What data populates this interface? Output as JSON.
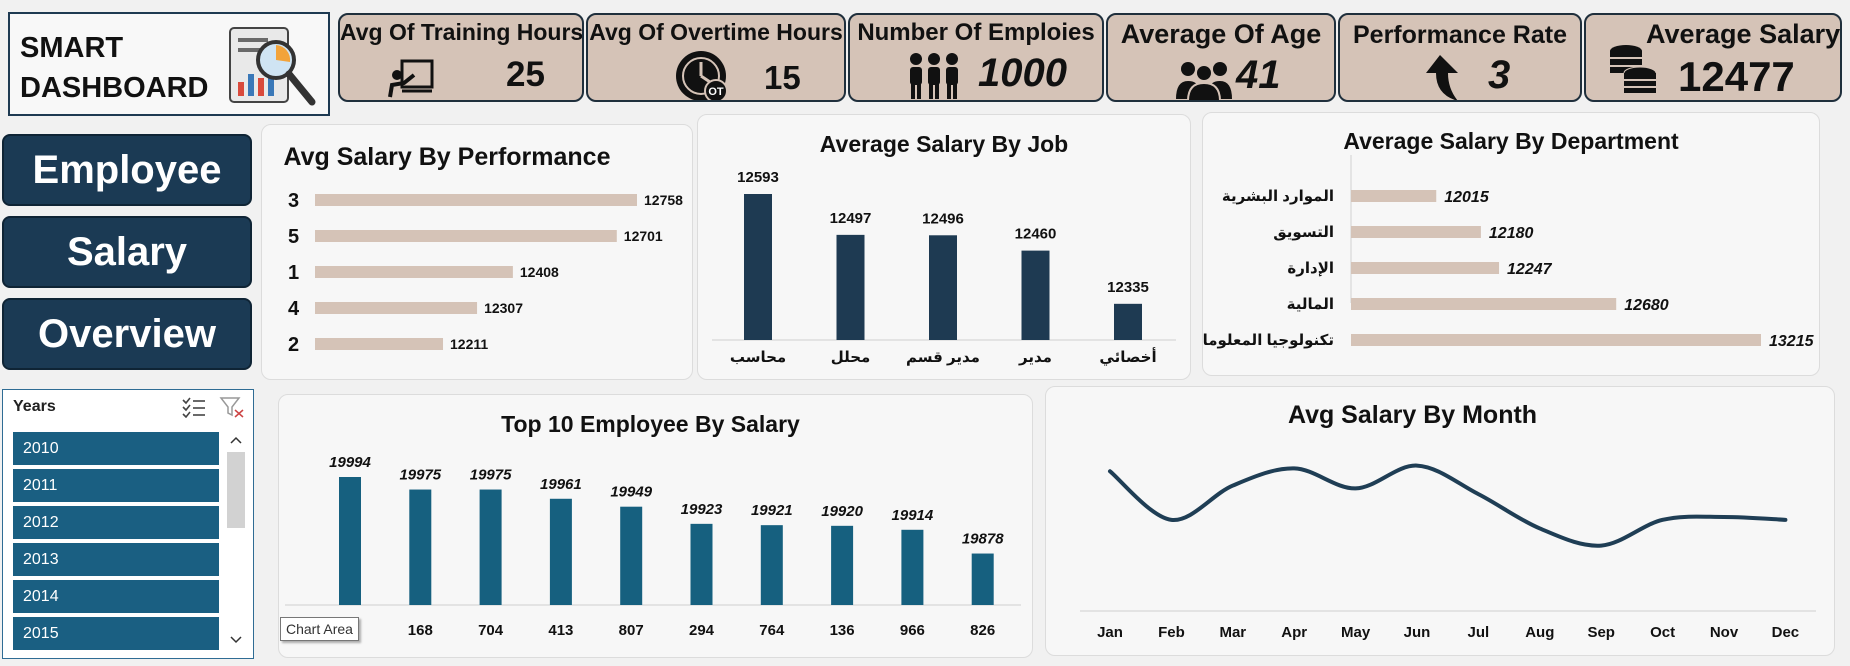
{
  "title": {
    "line1": "SMART",
    "line2": "DASHBOARD"
  },
  "kpis": [
    {
      "title": "Avg Of Training Hours",
      "value": "25",
      "icon": "presentation-icon"
    },
    {
      "title": "Avg Of Overtime Hours",
      "value": "15",
      "icon": "overtime-clock-icon"
    },
    {
      "title": "Number Of Emploies",
      "value": "1000",
      "icon": "people-group-icon"
    },
    {
      "title": "Average Of Age",
      "value": "41",
      "icon": "users-icon"
    },
    {
      "title": "Performance Rate",
      "value": "3",
      "icon": "arrow-up-icon"
    },
    {
      "title": "Average Salary",
      "value": "12477",
      "icon": "coins-icon"
    }
  ],
  "nav": {
    "employee": "Employee",
    "salary": "Salary",
    "overview": "Overview"
  },
  "slicer": {
    "title": "Years",
    "items": [
      "2010",
      "2011",
      "2012",
      "2013",
      "2014",
      "2015"
    ]
  },
  "tooltip": "Chart Area",
  "colors": {
    "navy": "#1e3a52",
    "beige": "#d5c3b7",
    "teal": "#16607f",
    "kpi_border": "#1f2f3c"
  },
  "chart_data": [
    {
      "type": "bar",
      "orientation": "horizontal",
      "title": "Avg Salary By Performance",
      "categories": [
        "3",
        "5",
        "1",
        "4",
        "2"
      ],
      "values": [
        12758,
        12701,
        12408,
        12307,
        12211
      ]
    },
    {
      "type": "bar",
      "title": "Average Salary By Job",
      "categories": [
        "محاسب",
        "محلل",
        "مدير قسم",
        "مدير",
        "أخصائي"
      ],
      "values": [
        12593,
        12497,
        12496,
        12460,
        12335
      ]
    },
    {
      "type": "bar",
      "orientation": "horizontal",
      "title": "Average Salary By Department",
      "categories": [
        "الموارد البشرية",
        "التسويق",
        "الإدارة",
        "المالية",
        "تكنولوجيا المعلومات"
      ],
      "values": [
        12015,
        12180,
        12247,
        12680,
        13215
      ]
    },
    {
      "type": "bar",
      "title": "Top 10 Employee By Salary",
      "categories": [
        "",
        "168",
        "704",
        "413",
        "807",
        "294",
        "764",
        "136",
        "966",
        "826"
      ],
      "values": [
        19994,
        19975,
        19975,
        19961,
        19949,
        19923,
        19921,
        19920,
        19914,
        19878
      ]
    },
    {
      "type": "line",
      "title": "Avg Salary By Month",
      "categories": [
        "Jan",
        "Feb",
        "Mar",
        "Apr",
        "May",
        "Jun",
        "Jul",
        "Aug",
        "Sep",
        "Oct",
        "Nov",
        "Dec"
      ],
      "values": [
        12550,
        12380,
        12500,
        12560,
        12490,
        12570,
        12470,
        12350,
        12290,
        12380,
        12390,
        12380
      ]
    }
  ]
}
